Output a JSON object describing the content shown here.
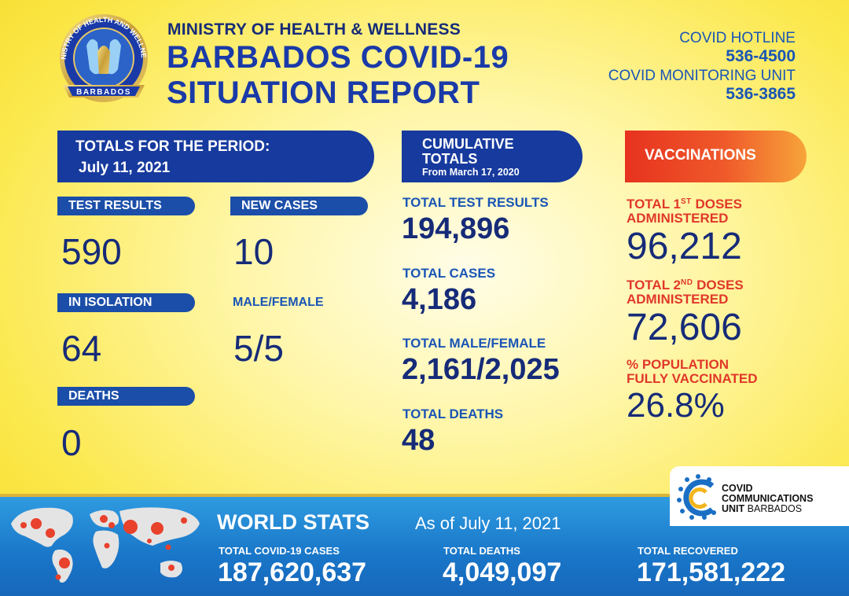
{
  "header": {
    "ministry": "MINISTRY OF HEALTH & WELLNESS",
    "title_line1": "BARBADOS COVID-19",
    "title_line2": "SITUATION REPORT",
    "logo_text_top": "MINISTRY OF HEALTH AND WELLNESS",
    "logo_text_bottom": "BARBADOS",
    "hotline_label": "COVID HOTLINE",
    "hotline_number": "536-4500",
    "monitoring_label": "COVID MONITORING UNIT",
    "monitoring_number": "536-3865"
  },
  "period": {
    "banner_line1": "TOTALS FOR THE PERIOD:",
    "banner_line2": "July 11, 2021",
    "test_results_label": "TEST RESULTS",
    "test_results_value": "590",
    "new_cases_label": "NEW CASES",
    "new_cases_value": "10",
    "isolation_label": "IN ISOLATION",
    "isolation_value": "64",
    "male_female_label": "MALE/FEMALE",
    "male_female_value": "5/5",
    "deaths_label": "DEATHS",
    "deaths_value": "0"
  },
  "cumulative": {
    "banner_line1": "CUMULATIVE",
    "banner_line2": "TOTALS",
    "banner_line3": "From March 17, 2020",
    "tests_label": "TOTAL TEST RESULTS",
    "tests_value": "194,896",
    "cases_label": "TOTAL CASES",
    "cases_value": "4,186",
    "mf_label": "TOTAL MALE/FEMALE",
    "mf_value": "2,161/2,025",
    "deaths_label": "TOTAL DEATHS",
    "deaths_value": "48"
  },
  "vaccinations": {
    "banner": "VACCINATIONS",
    "first_label_a": "TOTAL 1",
    "first_label_sup": "ST",
    "first_label_b": " DOSES",
    "first_label_line2": "ADMINISTERED",
    "first_value": "96,212",
    "second_label_a": "TOTAL 2",
    "second_label_sup": "ND",
    "second_label_b": " DOSES",
    "second_label_line2": "ADMINISTERED",
    "second_value": "72,606",
    "pct_label_line1": "% POPULATION",
    "pct_label_line2": "FULLY VACCINATED",
    "pct_value": "26.8%"
  },
  "comm_unit": {
    "line1": "COVID",
    "line2": "COMMUNICATIONS",
    "line3_bold": "UNIT",
    "line3_rest": " BARBADOS"
  },
  "world": {
    "title": "WORLD STATS",
    "as_of": "As of July 11, 2021",
    "cases_label": "TOTAL COVID-19 CASES",
    "cases_value": "187,620,637",
    "deaths_label": "TOTAL DEATHS",
    "deaths_value": "4,049,097",
    "recovered_label": "TOTAL RECOVERED",
    "recovered_value": "171,581,222"
  },
  "colors": {
    "navy": "#162b78",
    "blue": "#1a55b6",
    "red": "#e0382a",
    "banner_blue": "#173a9e",
    "world_blue": "#1976c8"
  },
  "icons": [
    "ministry-seal-icon",
    "hands-icon",
    "world-map-icon",
    "virus-icon",
    "ccu-logo-icon"
  ]
}
